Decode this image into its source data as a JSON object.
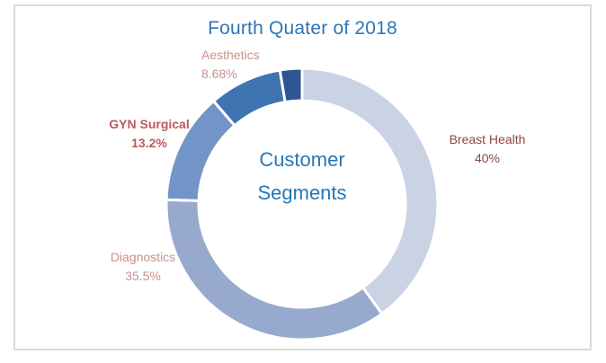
{
  "chart_data": {
    "type": "pie",
    "subtype": "donut",
    "title": "Fourth Quater of 2018",
    "title_color": "#2E75B6",
    "center_label": {
      "line1": "Customer",
      "line2": "Segments"
    },
    "center_label_color": "#2577B7",
    "legend": "none",
    "direction": "clockwise",
    "start_angle": "12-oclock",
    "slice_gap_color": "#FFFFFF",
    "segments": [
      {
        "label": "Breast Health",
        "display": "40%",
        "value": 40,
        "color": "#C9D3E4",
        "label_color": "#8A4646"
      },
      {
        "label": "Diagnostics",
        "display": "35.5%",
        "value": 35.5,
        "color": "#97AACE",
        "label_color": "#C79090"
      },
      {
        "label": "GYN Surgical",
        "display": "13.2%",
        "value": 13.2,
        "color": "#7394C6",
        "label_color": "#BC5A5A"
      },
      {
        "label": "Aesthetics",
        "display": "8.68%",
        "value": 8.68,
        "color": "#3F74B2",
        "label_color": "#C79090"
      },
      {
        "label": "",
        "display": "",
        "value": 2.62,
        "color": "#2E5593",
        "label_color": ""
      }
    ]
  },
  "frame": {
    "border_color": "#DADADA",
    "background": "#FFFFFF"
  }
}
